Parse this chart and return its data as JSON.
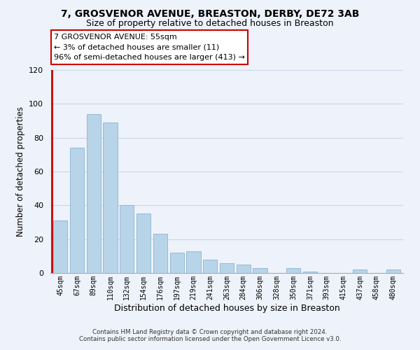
{
  "title": "7, GROSVENOR AVENUE, BREASTON, DERBY, DE72 3AB",
  "subtitle": "Size of property relative to detached houses in Breaston",
  "xlabel": "Distribution of detached houses by size in Breaston",
  "ylabel": "Number of detached properties",
  "categories": [
    "45sqm",
    "67sqm",
    "89sqm",
    "110sqm",
    "132sqm",
    "154sqm",
    "176sqm",
    "197sqm",
    "219sqm",
    "241sqm",
    "263sqm",
    "284sqm",
    "306sqm",
    "328sqm",
    "350sqm",
    "371sqm",
    "393sqm",
    "415sqm",
    "437sqm",
    "458sqm",
    "480sqm"
  ],
  "values": [
    31,
    74,
    94,
    89,
    40,
    35,
    23,
    12,
    13,
    8,
    6,
    5,
    3,
    0,
    3,
    1,
    0,
    0,
    2,
    0,
    2
  ],
  "bar_color": "#b8d4e8",
  "bar_edge_color": "#8ab4d4",
  "highlight_color": "#cc0000",
  "ylim": [
    0,
    120
  ],
  "yticks": [
    0,
    20,
    40,
    60,
    80,
    100,
    120
  ],
  "annotation_line1": "7 GROSVENOR AVENUE: 55sqm",
  "annotation_line2": "← 3% of detached houses are smaller (11)",
  "annotation_line3": "96% of semi-detached houses are larger (413) →",
  "footer_line1": "Contains HM Land Registry data © Crown copyright and database right 2024.",
  "footer_line2": "Contains public sector information licensed under the Open Government Licence v3.0.",
  "grid_color": "#c8d8ec",
  "background_color": "#eef2fa",
  "title_fontsize": 10,
  "subtitle_fontsize": 9
}
